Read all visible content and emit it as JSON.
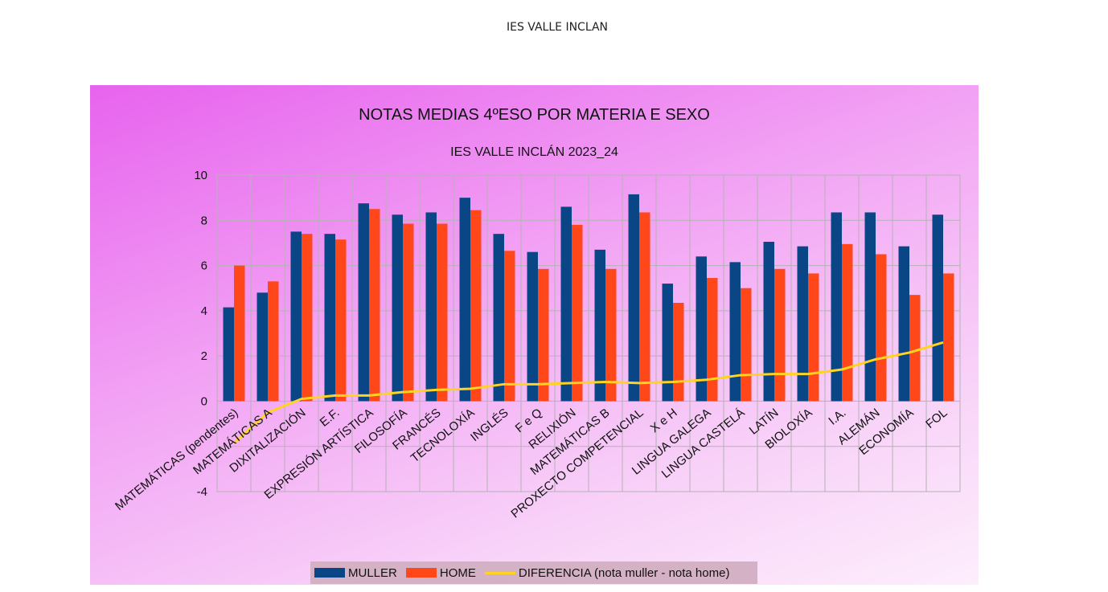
{
  "document": {
    "header": "IES VALLE INCLAN"
  },
  "colors": {
    "muller": "#0a4585",
    "home": "#ff4719",
    "diferencia": "#ffd320",
    "grid": "#b3b3b3"
  },
  "chart_data": {
    "type": "bar",
    "title": "NOTAS MEDIAS 4ºESO POR MATERIA E SEXO",
    "subtitle": "IES VALLE INCLÁN 2023_24",
    "ylim": [
      -4,
      10
    ],
    "yticks": [
      10,
      8,
      6,
      4,
      2,
      0,
      -4
    ],
    "grid": true,
    "legend_position": "bottom",
    "categories": [
      "MATEMÁTICAS (pendentes)",
      "MATEMÁTICAS A",
      "DIXITALIZACIÓN",
      "E.F.",
      "EXPRESIÓN ARTÍSTICA",
      "FILOSOFÍA",
      "FRANCÉS",
      "TECNOLOXÍA",
      "INGLÉS",
      "F e Q",
      "RELIXIÓN",
      "MATEMÁTICAS B",
      "PROXECTO COMPETENCIAL",
      "X e H",
      "LINGUA GALEGA",
      "LINGUA CASTELÁ",
      "LATÍN",
      "BIOLOXÍA",
      "I.A.",
      "ALEMÁN",
      "ECONOMÍA",
      "FOL"
    ],
    "series": [
      {
        "name": "MULLER",
        "kind": "bar",
        "values": [
          4.15,
          4.8,
          7.5,
          7.4,
          8.75,
          8.25,
          8.35,
          9.0,
          7.4,
          6.6,
          8.6,
          6.7,
          9.15,
          5.2,
          6.4,
          6.15,
          7.05,
          6.85,
          8.35,
          8.35,
          6.85,
          8.25
        ]
      },
      {
        "name": "HOME",
        "kind": "bar",
        "values": [
          6.0,
          5.3,
          7.4,
          7.15,
          8.5,
          7.85,
          7.85,
          8.45,
          6.65,
          5.85,
          7.8,
          5.85,
          8.35,
          4.35,
          5.45,
          5.0,
          5.85,
          5.65,
          6.95,
          6.5,
          4.7,
          5.65
        ]
      },
      {
        "name": "DIFERENCIA (nota muller - nota home)",
        "kind": "line",
        "values": [
          -1.85,
          -0.5,
          0.1,
          0.25,
          0.25,
          0.4,
          0.5,
          0.55,
          0.75,
          0.75,
          0.8,
          0.85,
          0.8,
          0.85,
          0.95,
          1.15,
          1.2,
          1.2,
          1.4,
          1.85,
          2.15,
          2.6
        ]
      }
    ]
  }
}
